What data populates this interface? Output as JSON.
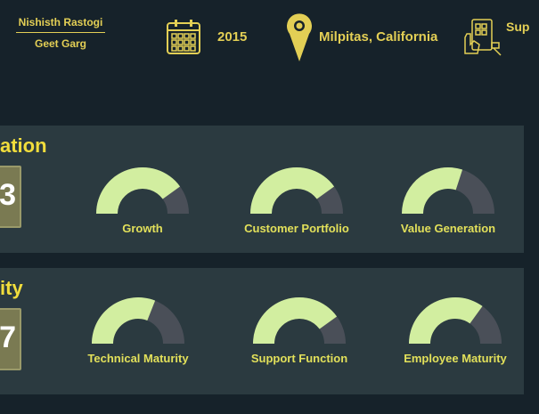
{
  "header": {
    "author_primary": "Nishisth Rastogi",
    "author_secondary": "Geet Garg",
    "year": "2015",
    "location": "Milpitas, California",
    "cut_text": "Sup",
    "icons": [
      "calendar-icon",
      "location-pin-icon",
      "touch-screen-icon"
    ]
  },
  "colors": {
    "background": "#16222a",
    "card": "#2b3a40",
    "accent_text": "#e3cf55",
    "title_text": "#f1dd3c",
    "gauge_fill": "#d2eea0",
    "gauge_track": "#4a4f58",
    "badge": "#7a7a52"
  },
  "sections": [
    {
      "title": "ation",
      "score": "3",
      "gauges": [
        {
          "label": "Growth",
          "value": 0.8
        },
        {
          "label": "Customer Portfolio",
          "value": 0.8
        },
        {
          "label": "Value Generation",
          "value": 0.6
        }
      ]
    },
    {
      "title": "ity",
      "score": "7",
      "gauges": [
        {
          "label": "Technical Maturity",
          "value": 0.62
        },
        {
          "label": "Support Function",
          "value": 0.8
        },
        {
          "label": "Employee Maturity",
          "value": 0.7
        }
      ]
    }
  ]
}
